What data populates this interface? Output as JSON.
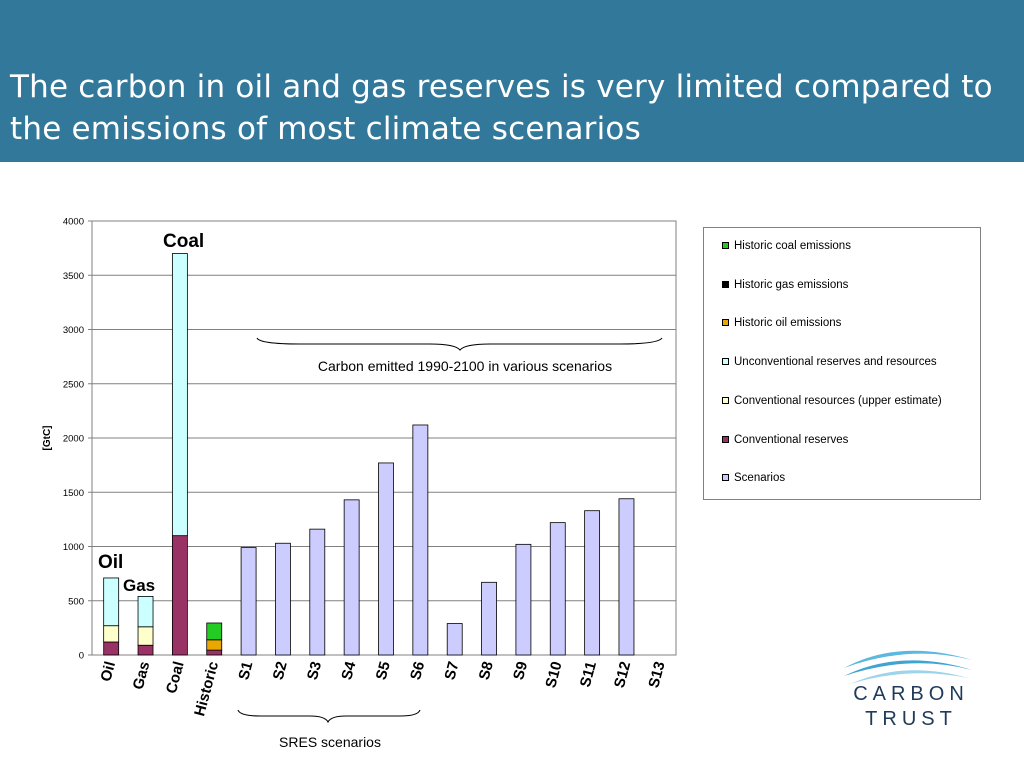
{
  "title": "The carbon in oil and gas reserves is very limited compared to the emissions of most climate scenarios",
  "colors": {
    "header_bg": "#31789A",
    "historic_coal": "#22CC22",
    "historic_gas": "#000000",
    "historic_oil": "#E8A800",
    "unconventional": "#CCFFFF",
    "conventional_resources": "#FFFFCC",
    "conventional_reserves": "#993366",
    "scenarios": "#CCCCFF"
  },
  "chart_data": {
    "type": "bar",
    "stacked": true,
    "ylabel": "[GtC]",
    "ylim": [
      0,
      4000
    ],
    "yticks": [
      0,
      500,
      1000,
      1500,
      2000,
      2500,
      3000,
      3500,
      4000
    ],
    "grid": true,
    "legend_position": "right",
    "categories": [
      "Oil",
      "Gas",
      "Coal",
      "Historic",
      "S1",
      "S2",
      "S3",
      "S4",
      "S5",
      "S6",
      "S7",
      "S8",
      "S9",
      "S10",
      "S11",
      "S12",
      "S13"
    ],
    "series": [
      {
        "name": "Historic coal emissions",
        "key": "historic_coal",
        "values": [
          0,
          0,
          0,
          155,
          0,
          0,
          0,
          0,
          0,
          0,
          0,
          0,
          0,
          0,
          0,
          0,
          0
        ]
      },
      {
        "name": "Historic gas emissions",
        "key": "historic_gas",
        "values": [
          0,
          0,
          0,
          0,
          0,
          0,
          0,
          0,
          0,
          0,
          0,
          0,
          0,
          0,
          0,
          0,
          0
        ]
      },
      {
        "name": "Historic oil emissions",
        "key": "historic_oil",
        "values": [
          0,
          0,
          0,
          95,
          0,
          0,
          0,
          0,
          0,
          0,
          0,
          0,
          0,
          0,
          0,
          0,
          0
        ]
      },
      {
        "name": "Unconventional reserves and resources",
        "key": "unconventional",
        "values": [
          440,
          280,
          2600,
          0,
          0,
          0,
          0,
          0,
          0,
          0,
          0,
          0,
          0,
          0,
          0,
          0,
          0
        ]
      },
      {
        "name": "Conventional resources (upper estimate)",
        "key": "conventional_resources",
        "values": [
          150,
          170,
          0,
          0,
          0,
          0,
          0,
          0,
          0,
          0,
          0,
          0,
          0,
          0,
          0,
          0,
          0
        ]
      },
      {
        "name": "Conventional reserves",
        "key": "conventional_reserves",
        "values": [
          120,
          90,
          1100,
          45,
          0,
          0,
          0,
          0,
          0,
          0,
          0,
          0,
          0,
          0,
          0,
          0,
          0
        ]
      },
      {
        "name": "Scenarios",
        "key": "scenarios",
        "values": [
          0,
          0,
          0,
          0,
          990,
          1030,
          1160,
          1430,
          1770,
          2120,
          290,
          670,
          1020,
          1220,
          1330,
          1440,
          0
        ]
      }
    ],
    "annotations": {
      "coal": "Coal",
      "oil": "Oil",
      "gas": "Gas",
      "scenarios_brace": "Carbon emitted 1990-2100 in various scenarios",
      "sres_brace": "SRES scenarios"
    }
  },
  "legend_items": [
    {
      "label": "Historic coal emissions",
      "key": "historic_coal"
    },
    {
      "label": "Historic gas emissions",
      "key": "historic_gas"
    },
    {
      "label": "Historic oil emissions",
      "key": "historic_oil"
    },
    {
      "label": "Unconventional reserves and resources",
      "key": "unconventional"
    },
    {
      "label": "Conventional resources (upper estimate)",
      "key": "conventional_resources"
    },
    {
      "label": "Conventional reserves",
      "key": "conventional_reserves"
    },
    {
      "label": "Scenarios",
      "key": "scenarios"
    }
  ],
  "logo": {
    "line1": "CARBON",
    "line2": "TRUST"
  }
}
